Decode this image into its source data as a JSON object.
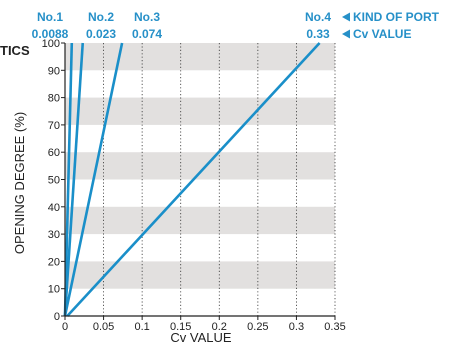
{
  "chart_data": {
    "type": "line",
    "title_fragment": "TICS",
    "xlabel": "Cv VALUE",
    "ylabel": "OPENING DEGREE (%)",
    "xlim": [
      0,
      0.35
    ],
    "ylim": [
      0,
      100
    ],
    "x_ticks": [
      "0",
      "0.05",
      "0.1",
      "0.15",
      "0.2",
      "0.25",
      "0.3",
      "0.35"
    ],
    "y_ticks": [
      "0",
      "10",
      "20",
      "30",
      "40",
      "50",
      "60",
      "70",
      "80",
      "90",
      "100"
    ],
    "banded_background": true,
    "vertical_grid": "dotted",
    "series": [
      {
        "name": "No.1",
        "cv": "0.0088",
        "points": [
          [
            0.0,
            0
          ],
          [
            0.0088,
            100
          ]
        ]
      },
      {
        "name": "No.2",
        "cv": "0.023",
        "points": [
          [
            0.0,
            0
          ],
          [
            0.023,
            100
          ]
        ]
      },
      {
        "name": "No.3",
        "cv": "0.074",
        "points": [
          [
            0.0,
            0
          ],
          [
            0.074,
            100
          ]
        ]
      },
      {
        "name": "No.4",
        "cv": "0.33",
        "points": [
          [
            0.003,
            0
          ],
          [
            0.33,
            100
          ]
        ]
      }
    ],
    "legend": {
      "kind_of_port": "KIND OF PORT",
      "cv_value": "Cv VALUE",
      "placement": "top-right"
    }
  },
  "colors": {
    "series": "#1a8fc9",
    "label": "#2690c8",
    "band": "#e2e0df",
    "axis": "#222222"
  }
}
